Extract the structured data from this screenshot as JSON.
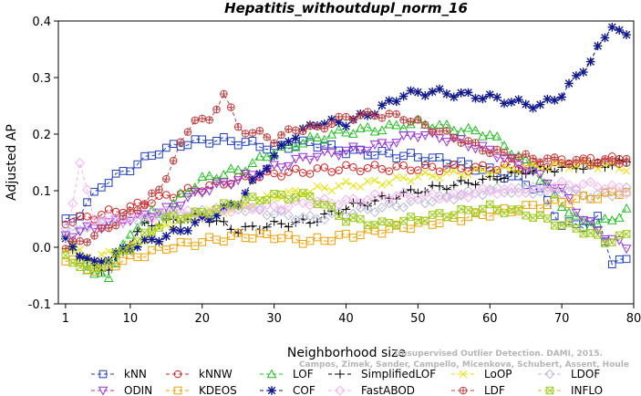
{
  "chart_data": {
    "type": "line",
    "title": "Hepatitis_withoutdupl_norm_16",
    "xlabel": "Neighborhood size",
    "ylabel": "Adjusted AP",
    "xlim": [
      0,
      80
    ],
    "ylim": [
      -0.1,
      0.4
    ],
    "x_ticks": [
      1,
      10,
      20,
      30,
      40,
      50,
      60,
      70,
      80
    ],
    "y_ticks": [
      -0.1,
      0.0,
      0.1,
      0.2,
      0.3,
      0.4
    ],
    "x_tick_labels": [
      "1",
      "10",
      "20",
      "30",
      "40",
      "50",
      "60",
      "70",
      "80"
    ],
    "y_tick_labels": [
      "-0.1",
      "0.0",
      "0.1",
      "0.2",
      "0.3",
      "0.4"
    ],
    "grid": false,
    "legend_position": "bottom",
    "watermark": [
      "Unsupervised Outlier Detection. DAMI, 2015.",
      "Campos, Zimek, Sander, Campello, Micenkova, Schubert, Assent, Houle"
    ],
    "series": [
      {
        "name": "kNN",
        "color": "#1f3fbf",
        "marker": "square",
        "knots": [
          [
            1,
            0.045
          ],
          [
            3,
            0.06
          ],
          [
            6,
            0.11
          ],
          [
            10,
            0.14
          ],
          [
            14,
            0.17
          ],
          [
            18,
            0.185
          ],
          [
            22,
            0.19
          ],
          [
            26,
            0.185
          ],
          [
            30,
            0.175
          ],
          [
            35,
            0.185
          ],
          [
            40,
            0.17
          ],
          [
            45,
            0.165
          ],
          [
            50,
            0.16
          ],
          [
            55,
            0.15
          ],
          [
            60,
            0.135
          ],
          [
            64,
            0.12
          ],
          [
            67,
            0.1
          ],
          [
            70,
            0.04
          ],
          [
            73,
            0.04
          ],
          [
            75,
            0.05
          ],
          [
            77,
            -0.025
          ],
          [
            79,
            -0.025
          ]
        ]
      },
      {
        "name": "kNNW",
        "color": "#d42020",
        "marker": "circle",
        "knots": [
          [
            1,
            0.045
          ],
          [
            5,
            0.055
          ],
          [
            10,
            0.07
          ],
          [
            15,
            0.09
          ],
          [
            20,
            0.105
          ],
          [
            25,
            0.12
          ],
          [
            30,
            0.13
          ],
          [
            35,
            0.135
          ],
          [
            40,
            0.14
          ],
          [
            45,
            0.14
          ],
          [
            50,
            0.14
          ],
          [
            55,
            0.14
          ],
          [
            60,
            0.14
          ],
          [
            65,
            0.145
          ],
          [
            70,
            0.15
          ],
          [
            75,
            0.155
          ],
          [
            79,
            0.155
          ]
        ]
      },
      {
        "name": "LOF",
        "color": "#20c020",
        "marker": "triangle-up",
        "knots": [
          [
            1,
            0.02
          ],
          [
            3,
            -0.02
          ],
          [
            5,
            -0.05
          ],
          [
            7,
            -0.05
          ],
          [
            9,
            0.0
          ],
          [
            11,
            0.04
          ],
          [
            13,
            0.06
          ],
          [
            15,
            0.06
          ],
          [
            17,
            0.09
          ],
          [
            20,
            0.12
          ],
          [
            23,
            0.13
          ],
          [
            26,
            0.14
          ],
          [
            30,
            0.17
          ],
          [
            35,
            0.19
          ],
          [
            40,
            0.205
          ],
          [
            45,
            0.21
          ],
          [
            50,
            0.22
          ],
          [
            55,
            0.21
          ],
          [
            60,
            0.2
          ],
          [
            63,
            0.17
          ],
          [
            66,
            0.14
          ],
          [
            69,
            0.09
          ],
          [
            72,
            0.05
          ],
          [
            75,
            0.04
          ],
          [
            77,
            0.05
          ],
          [
            79,
            0.065
          ]
        ]
      },
      {
        "name": "SimplifiedLOF",
        "color": "#000000",
        "marker": "plus",
        "knots": [
          [
            1,
            0.015
          ],
          [
            4,
            -0.03
          ],
          [
            7,
            -0.04
          ],
          [
            10,
            0.01
          ],
          [
            12,
            0.04
          ],
          [
            15,
            0.045
          ],
          [
            20,
            0.055
          ],
          [
            25,
            0.03
          ],
          [
            30,
            0.04
          ],
          [
            35,
            0.045
          ],
          [
            40,
            0.07
          ],
          [
            45,
            0.085
          ],
          [
            50,
            0.1
          ],
          [
            55,
            0.11
          ],
          [
            60,
            0.12
          ],
          [
            65,
            0.135
          ],
          [
            70,
            0.14
          ],
          [
            75,
            0.145
          ],
          [
            79,
            0.15
          ]
        ]
      },
      {
        "name": "LoOP",
        "color": "#e8e000",
        "marker": "x",
        "knots": [
          [
            1,
            0.0
          ],
          [
            5,
            -0.02
          ],
          [
            10,
            0.0
          ],
          [
            15,
            0.04
          ],
          [
            20,
            0.06
          ],
          [
            25,
            0.07
          ],
          [
            30,
            0.09
          ],
          [
            35,
            0.1
          ],
          [
            40,
            0.11
          ],
          [
            45,
            0.115
          ],
          [
            50,
            0.125
          ],
          [
            55,
            0.13
          ],
          [
            60,
            0.135
          ],
          [
            65,
            0.14
          ],
          [
            70,
            0.145
          ],
          [
            75,
            0.145
          ],
          [
            79,
            0.14
          ]
        ]
      },
      {
        "name": "LDOF",
        "color": "#b8b8dc",
        "marker": "diamond",
        "knots": [
          [
            1,
            0.03
          ],
          [
            5,
            0.04
          ],
          [
            10,
            0.05
          ],
          [
            15,
            0.06
          ],
          [
            20,
            0.06
          ],
          [
            25,
            0.07
          ],
          [
            30,
            0.06
          ],
          [
            35,
            0.05
          ],
          [
            40,
            0.06
          ],
          [
            45,
            0.07
          ],
          [
            50,
            0.08
          ],
          [
            55,
            0.09
          ],
          [
            60,
            0.1
          ],
          [
            65,
            0.1
          ],
          [
            70,
            0.1
          ],
          [
            75,
            0.09
          ],
          [
            79,
            0.1
          ]
        ]
      },
      {
        "name": "ODIN",
        "color": "#9a30d8",
        "marker": "triangle-down",
        "knots": [
          [
            1,
            0.02
          ],
          [
            5,
            0.035
          ],
          [
            10,
            0.05
          ],
          [
            15,
            0.065
          ],
          [
            20,
            0.1
          ],
          [
            25,
            0.12
          ],
          [
            30,
            0.14
          ],
          [
            35,
            0.16
          ],
          [
            40,
            0.17
          ],
          [
            45,
            0.18
          ],
          [
            50,
            0.2
          ],
          [
            55,
            0.19
          ],
          [
            60,
            0.17
          ],
          [
            65,
            0.14
          ],
          [
            70,
            0.1
          ],
          [
            73,
            0.05
          ],
          [
            76,
            0.02
          ],
          [
            79,
            0.0
          ]
        ]
      },
      {
        "name": "KDEOS",
        "color": "#f0a000",
        "marker": "square",
        "knots": [
          [
            1,
            -0.02
          ],
          [
            5,
            -0.04
          ],
          [
            10,
            -0.02
          ],
          [
            15,
            0.0
          ],
          [
            20,
            0.01
          ],
          [
            25,
            0.02
          ],
          [
            30,
            0.02
          ],
          [
            35,
            0.01
          ],
          [
            40,
            0.02
          ],
          [
            45,
            0.03
          ],
          [
            50,
            0.04
          ],
          [
            55,
            0.05
          ],
          [
            60,
            0.06
          ],
          [
            65,
            0.07
          ],
          [
            70,
            0.08
          ],
          [
            75,
            0.09
          ],
          [
            79,
            0.1
          ]
        ]
      },
      {
        "name": "COF",
        "color": "#101890",
        "marker": "asterisk",
        "knots": [
          [
            1,
            0.01
          ],
          [
            5,
            -0.03
          ],
          [
            10,
            0.0
          ],
          [
            15,
            0.02
          ],
          [
            18,
            0.035
          ],
          [
            22,
            0.06
          ],
          [
            25,
            0.08
          ],
          [
            28,
            0.13
          ],
          [
            32,
            0.19
          ],
          [
            36,
            0.22
          ],
          [
            40,
            0.22
          ],
          [
            44,
            0.24
          ],
          [
            48,
            0.27
          ],
          [
            52,
            0.275
          ],
          [
            56,
            0.27
          ],
          [
            60,
            0.265
          ],
          [
            64,
            0.255
          ],
          [
            67,
            0.25
          ],
          [
            70,
            0.27
          ],
          [
            72,
            0.3
          ],
          [
            74,
            0.33
          ],
          [
            76,
            0.37
          ],
          [
            77,
            0.395
          ],
          [
            79,
            0.37
          ]
        ]
      },
      {
        "name": "FastABOD",
        "color": "#f4b0f0",
        "marker": "diamond",
        "knots": [
          [
            1,
            0.02
          ],
          [
            3,
            0.145
          ],
          [
            5,
            0.05
          ],
          [
            10,
            0.05
          ],
          [
            15,
            0.06
          ],
          [
            20,
            0.06
          ],
          [
            25,
            0.07
          ],
          [
            30,
            0.07
          ],
          [
            35,
            0.08
          ],
          [
            40,
            0.08
          ],
          [
            45,
            0.09
          ],
          [
            50,
            0.09
          ],
          [
            55,
            0.09
          ],
          [
            60,
            0.1
          ],
          [
            65,
            0.1
          ],
          [
            70,
            0.11
          ],
          [
            75,
            0.11
          ],
          [
            79,
            0.1
          ]
        ]
      },
      {
        "name": "LDF",
        "color": "#c04040",
        "marker": "circle-plus",
        "knots": [
          [
            1,
            0.0
          ],
          [
            5,
            0.02
          ],
          [
            10,
            0.06
          ],
          [
            14,
            0.1
          ],
          [
            17,
            0.18
          ],
          [
            19,
            0.23
          ],
          [
            21,
            0.22
          ],
          [
            23,
            0.275
          ],
          [
            25,
            0.21
          ],
          [
            28,
            0.2
          ],
          [
            30,
            0.19
          ],
          [
            33,
            0.21
          ],
          [
            36,
            0.21
          ],
          [
            40,
            0.23
          ],
          [
            44,
            0.235
          ],
          [
            48,
            0.23
          ],
          [
            52,
            0.21
          ],
          [
            56,
            0.19
          ],
          [
            60,
            0.17
          ],
          [
            64,
            0.16
          ],
          [
            68,
            0.155
          ],
          [
            72,
            0.15
          ],
          [
            76,
            0.15
          ],
          [
            79,
            0.155
          ]
        ]
      },
      {
        "name": "INFLO",
        "color": "#a0cc20",
        "marker": "box-x",
        "knots": [
          [
            1,
            -0.02
          ],
          [
            5,
            -0.04
          ],
          [
            10,
            0.0
          ],
          [
            15,
            0.05
          ],
          [
            20,
            0.06
          ],
          [
            25,
            0.08
          ],
          [
            30,
            0.09
          ],
          [
            35,
            0.09
          ],
          [
            40,
            0.05
          ],
          [
            45,
            0.04
          ],
          [
            50,
            0.05
          ],
          [
            55,
            0.06
          ],
          [
            60,
            0.07
          ],
          [
            65,
            0.06
          ],
          [
            70,
            0.04
          ],
          [
            73,
            0.03
          ],
          [
            76,
            0.01
          ],
          [
            79,
            0.02
          ]
        ]
      }
    ]
  }
}
